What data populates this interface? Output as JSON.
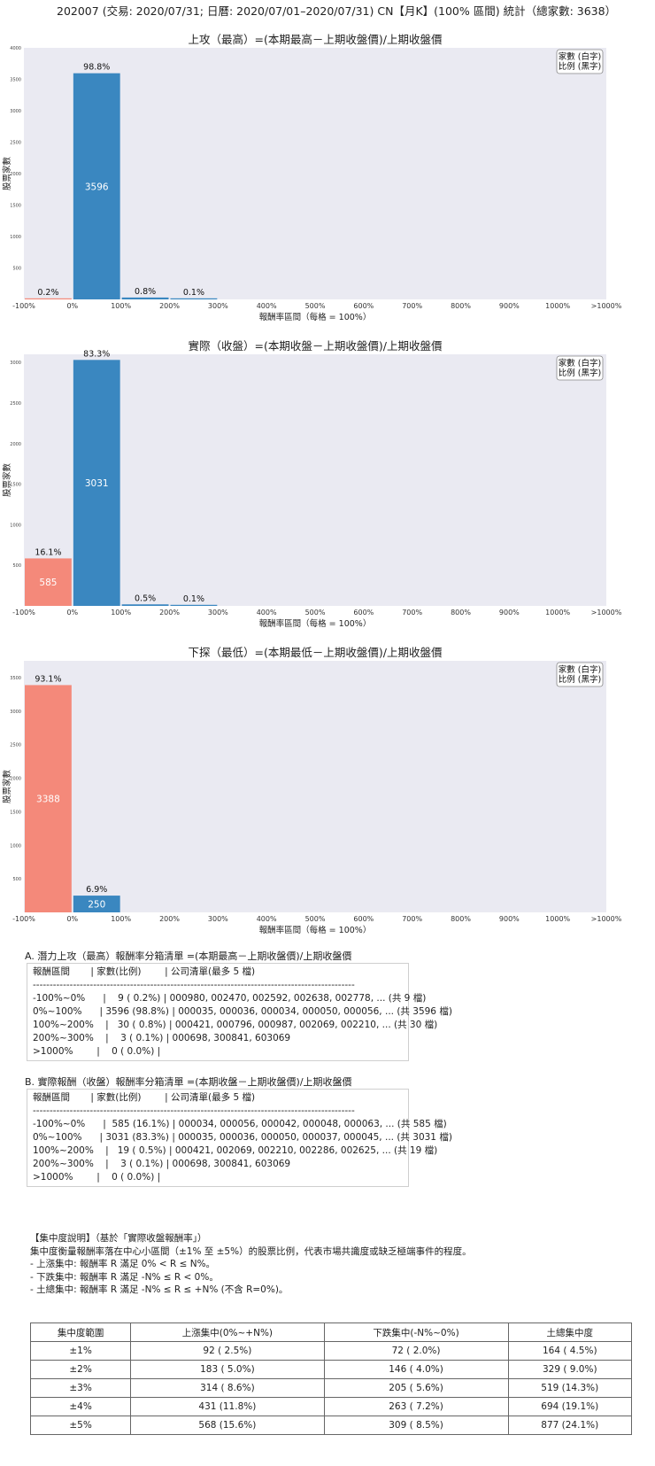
{
  "page_title": "202007 (交易: 2020/07/31; 日曆: 2020/07/01–2020/07/31) CN【月K】(100% 區間) 統計（總家數: 3638）",
  "chart_data": [
    {
      "type": "bar",
      "title": "上攻（最高）=(本期最高－上期收盤價)/上期收盤價",
      "xlabel": "報酬率區間（每格 = 100%）",
      "ylabel": "股票家數",
      "categories": [
        "-100%",
        "0%",
        "100%",
        "200%",
        "300%",
        "400%",
        "500%",
        "600%",
        "700%",
        "800%",
        "900%",
        "1000%",
        ">1000%"
      ],
      "x_tick_labels": [
        "-100%",
        "0%",
        "100%",
        "200%",
        "300%",
        "400%",
        "500%",
        "600%",
        "700%",
        "800%",
        "900%",
        "1000%",
        ">1000%"
      ],
      "y_ticks": [
        500,
        1000,
        1500,
        2000,
        2500,
        3000,
        3500,
        4000
      ],
      "ylim": [
        0,
        4000
      ],
      "bars": [
        {
          "bin": 0,
          "value": 9,
          "pct": "0.2%",
          "count_label": "",
          "color": "#f4897a"
        },
        {
          "bin": 1,
          "value": 3596,
          "pct": "98.8%",
          "count_label": "3596",
          "color": "#3a87c0"
        },
        {
          "bin": 2,
          "value": 30,
          "pct": "0.8%",
          "count_label": "",
          "color": "#3a87c0"
        },
        {
          "bin": 3,
          "value": 3,
          "pct": "0.1%",
          "count_label": "",
          "color": "#3a87c0"
        }
      ],
      "legend": [
        "家數 (白字)",
        "比例 (黑字)"
      ],
      "legend_position": "top-right"
    },
    {
      "type": "bar",
      "title": "實際（收盤）=(本期收盤－上期收盤價)/上期收盤價",
      "xlabel": "報酬率區間（每格 = 100%）",
      "ylabel": "股票家數",
      "categories": [
        "-100%",
        "0%",
        "100%",
        "200%",
        "300%",
        "400%",
        "500%",
        "600%",
        "700%",
        "800%",
        "900%",
        "1000%",
        ">1000%"
      ],
      "x_tick_labels": [
        "-100%",
        "0%",
        "100%",
        "200%",
        "300%",
        "400%",
        "500%",
        "600%",
        "700%",
        "800%",
        "900%",
        "1000%",
        ">1000%"
      ],
      "y_ticks": [
        500,
        1000,
        1500,
        2000,
        2500,
        3000
      ],
      "ylim": [
        0,
        3100
      ],
      "bars": [
        {
          "bin": 0,
          "value": 585,
          "pct": "16.1%",
          "count_label": "585",
          "color": "#f4897a"
        },
        {
          "bin": 1,
          "value": 3031,
          "pct": "83.3%",
          "count_label": "3031",
          "color": "#3a87c0"
        },
        {
          "bin": 2,
          "value": 19,
          "pct": "0.5%",
          "count_label": "",
          "color": "#3a87c0"
        },
        {
          "bin": 3,
          "value": 3,
          "pct": "0.1%",
          "count_label": "",
          "color": "#3a87c0"
        }
      ],
      "legend": [
        "家數 (白字)",
        "比例 (黑字)"
      ],
      "legend_position": "top-right"
    },
    {
      "type": "bar",
      "title": "下探（最低）=(本期最低－上期收盤價)/上期收盤價",
      "xlabel": "報酬率區間（每格 = 100%）",
      "ylabel": "股票家數",
      "categories": [
        "-100%",
        "0%",
        "100%",
        "200%",
        "300%",
        "400%",
        "500%",
        "600%",
        "700%",
        "800%",
        "900%",
        "1000%",
        ">1000%"
      ],
      "x_tick_labels": [
        "-100%",
        "0%",
        "100%",
        "200%",
        "300%",
        "400%",
        "500%",
        "600%",
        "700%",
        "800%",
        "900%",
        "1000%",
        ">1000%"
      ],
      "y_ticks": [
        500,
        1000,
        1500,
        2000,
        2500,
        3000,
        3500
      ],
      "ylim": [
        0,
        3750
      ],
      "bars": [
        {
          "bin": 0,
          "value": 3388,
          "pct": "93.1%",
          "count_label": "3388",
          "color": "#f4897a"
        },
        {
          "bin": 1,
          "value": 250,
          "pct": "6.9%",
          "count_label": "250",
          "color": "#3a87c0"
        }
      ],
      "legend": [
        "家數 (白字)",
        "比例 (黑字)"
      ],
      "legend_position": "top-right"
    }
  ],
  "list_a": {
    "title": "A. 潛力上攻（最高）報酬率分箱清單 =(本期最高－上期收盤價)/上期收盤價",
    "lines": [
      "報酬區間       | 家數(比例)        | 公司清單(最多 5 檔)",
      "------------------------------------------------------------------------------------------------",
      "-100%~0%      |    9 ( 0.2%) | 000980, 002470, 002592, 002638, 002778, ... (共 9 檔)",
      "0%~100%      | 3596 (98.8%) | 000035, 000036, 000034, 000050, 000056, ... (共 3596 檔)",
      "100%~200%    |   30 ( 0.8%) | 000421, 000796, 000987, 002069, 002210, ... (共 30 檔)",
      "200%~300%    |    3 ( 0.1%) | 000698, 300841, 603069",
      ">1000%        |    0 ( 0.0%) |"
    ]
  },
  "list_b": {
    "title": "B. 實際報酬（收盤）報酬率分箱清單 =(本期收盤－上期收盤價)/上期收盤價",
    "lines": [
      "報酬區間       | 家數(比例)        | 公司清單(最多 5 檔)",
      "------------------------------------------------------------------------------------------------",
      "-100%~0%      |  585 (16.1%) | 000034, 000056, 000042, 000048, 000063, ... (共 585 檔)",
      "0%~100%      | 3031 (83.3%) | 000035, 000036, 000050, 000037, 000045, ... (共 3031 檔)",
      "100%~200%    |   19 ( 0.5%) | 000421, 002069, 002210, 002286, 002625, ... (共 19 檔)",
      "200%~300%    |    3 ( 0.1%) | 000698, 300841, 603069",
      ">1000%        |    0 ( 0.0%) |"
    ]
  },
  "notes": {
    "title": "【集中度說明】（基於「實際收盤報酬率」）",
    "lines": [
      "集中度衡量報酬率落在中心小區間（±1% 至 ±5%）的股票比例，代表市場共識度或缺乏極端事件的程度。",
      " - 上漲集中: 報酬率 R 滿足 0% < R ≤ N%。",
      " - 下跌集中: 報酬率 R 滿足 -N% ≤ R < 0%。",
      " - 土總集中: 報酬率 R 滿足 -N% ≤ R ≤ +N% (不含 R=0%)。"
    ]
  },
  "concentration_table": {
    "headers": [
      "集中度範圍",
      "上漲集中(0%~+N%)",
      "下跌集中(-N%~0%)",
      "土總集中度"
    ],
    "rows": [
      [
        "±1%",
        "92 ( 2.5%)",
        "72 ( 2.0%)",
        "164 ( 4.5%)"
      ],
      [
        "±2%",
        "183 ( 5.0%)",
        "146 ( 4.0%)",
        "329 ( 9.0%)"
      ],
      [
        "±3%",
        "314 ( 8.6%)",
        "205 ( 5.6%)",
        "519 (14.3%)"
      ],
      [
        "±4%",
        "431 (11.8%)",
        "263 ( 7.2%)",
        "694 (19.1%)"
      ],
      [
        "±5%",
        "568 (15.6%)",
        "309 ( 8.5%)",
        "877 (24.1%)"
      ]
    ]
  }
}
